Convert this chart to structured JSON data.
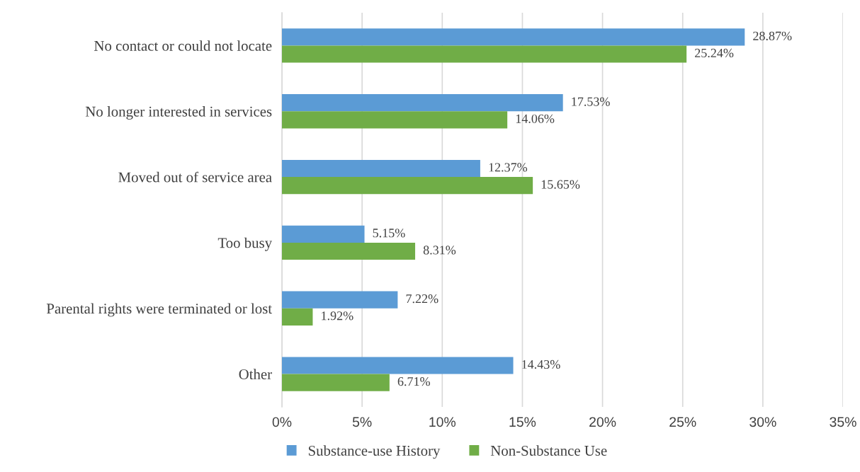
{
  "chart_data": {
    "type": "bar",
    "orientation": "horizontal",
    "categories": [
      "No contact or could not locate",
      "No longer interested in services",
      "Moved out of service area",
      "Too busy",
      "Parental rights were terminated or lost",
      "Other"
    ],
    "series": [
      {
        "name": "Substance-use History",
        "color": "#5b9bd5",
        "values": [
          28.87,
          17.53,
          12.37,
          5.15,
          7.22,
          14.43
        ],
        "value_labels": [
          "28.87%",
          "17.53%",
          "12.37%",
          "5.15%",
          "7.22%",
          "14.43%"
        ]
      },
      {
        "name": "Non-Substance Use",
        "color": "#70ad47",
        "values": [
          25.24,
          14.06,
          15.65,
          8.31,
          1.92,
          6.71
        ],
        "value_labels": [
          "25.24%",
          "14.06%",
          "15.65%",
          "8.31%",
          "1.92%",
          "6.71%"
        ]
      }
    ],
    "xlim": [
      0,
      35
    ],
    "xticks": [
      {
        "value": 0,
        "label": "0%"
      },
      {
        "value": 5,
        "label": "5%"
      },
      {
        "value": 10,
        "label": "10%"
      },
      {
        "value": 15,
        "label": "15%"
      },
      {
        "value": 20,
        "label": "20%"
      },
      {
        "value": 25,
        "label": "25%"
      },
      {
        "value": 30,
        "label": "30%"
      },
      {
        "value": 35,
        "label": "35%"
      }
    ],
    "grid": "x",
    "legend": "bottom"
  }
}
